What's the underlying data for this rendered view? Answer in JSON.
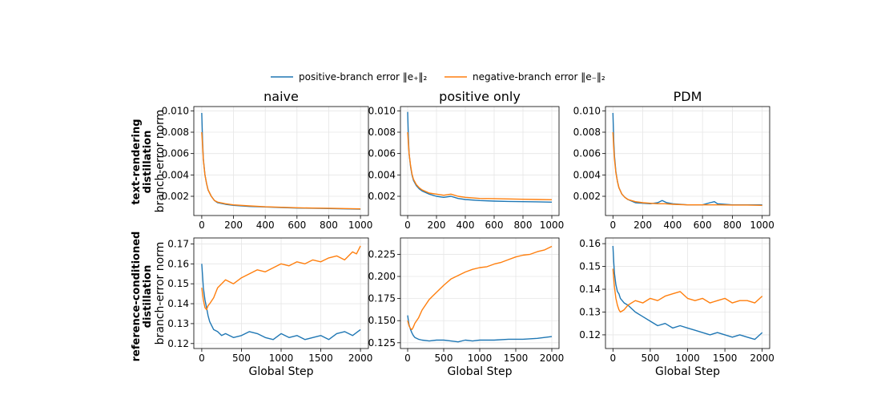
{
  "legend": {
    "items": [
      {
        "label": "positive-branch error  ‖e₊‖₂",
        "color": "#1f77b4"
      },
      {
        "label": "negative-branch error  ‖e₋‖₂",
        "color": "#ff7f0e"
      }
    ],
    "placement": "top-center"
  },
  "row_labels": [
    {
      "line1": "text-rendering",
      "line2": "distillation"
    },
    {
      "line1": "reference-conditioned",
      "line2": "distillation"
    }
  ],
  "chart_data": [
    {
      "type": "line",
      "title": "naive",
      "xlabel": "",
      "ylabel": "branch-error norm",
      "xlim": [
        -50,
        1050
      ],
      "ylim": [
        0.0002,
        0.0104
      ],
      "xticks": [
        0,
        200,
        400,
        600,
        800,
        1000
      ],
      "xtick_labels": [
        "0",
        "200",
        "400",
        "600",
        "800",
        "1000"
      ],
      "yticks": [
        0.002,
        0.004,
        0.006,
        0.008,
        0.01
      ],
      "ytick_labels": [
        "0.002",
        "0.004",
        "0.006",
        "0.008",
        "0.010"
      ],
      "grid": true,
      "series": [
        {
          "color": "#1f77b4",
          "x": [
            0,
            5,
            10,
            20,
            30,
            40,
            60,
            80,
            100,
            150,
            200,
            300,
            400,
            500,
            600,
            700,
            800,
            900,
            1000
          ],
          "y": [
            0.0098,
            0.0072,
            0.0055,
            0.004,
            0.0032,
            0.0026,
            0.002,
            0.0016,
            0.0014,
            0.00125,
            0.00115,
            0.00105,
            0.001,
            0.00095,
            0.0009,
            0.00088,
            0.00085,
            0.00082,
            0.0008
          ]
        },
        {
          "color": "#ff7f0e",
          "x": [
            0,
            5,
            10,
            20,
            30,
            40,
            60,
            80,
            100,
            150,
            200,
            300,
            400,
            500,
            600,
            700,
            800,
            900,
            1000
          ],
          "y": [
            0.008,
            0.0068,
            0.0054,
            0.004,
            0.0032,
            0.0026,
            0.002,
            0.0016,
            0.00145,
            0.0013,
            0.0012,
            0.0011,
            0.00102,
            0.00097,
            0.00093,
            0.0009,
            0.00088,
            0.00085,
            0.00082
          ]
        }
      ]
    },
    {
      "type": "line",
      "title": "positive only",
      "xlabel": "",
      "ylabel": "",
      "xlim": [
        -50,
        1050
      ],
      "ylim": [
        0.0002,
        0.0104
      ],
      "xticks": [
        0,
        200,
        400,
        600,
        800,
        1000
      ],
      "xtick_labels": [
        "0",
        "200",
        "400",
        "600",
        "800",
        "1000"
      ],
      "yticks": [
        0.002,
        0.004,
        0.006,
        0.008,
        0.01
      ],
      "ytick_labels": [
        "0.002",
        "0.004",
        "0.006",
        "0.008",
        "0.010"
      ],
      "grid": true,
      "series": [
        {
          "color": "#1f77b4",
          "x": [
            0,
            5,
            10,
            20,
            30,
            40,
            60,
            80,
            100,
            150,
            200,
            250,
            300,
            350,
            400,
            500,
            600,
            700,
            800,
            900,
            1000
          ],
          "y": [
            0.0099,
            0.0075,
            0.006,
            0.0048,
            0.004,
            0.0035,
            0.003,
            0.0027,
            0.0025,
            0.0022,
            0.002,
            0.0019,
            0.002,
            0.0018,
            0.0017,
            0.0016,
            0.00155,
            0.00152,
            0.0015,
            0.00148,
            0.00145
          ]
        },
        {
          "color": "#ff7f0e",
          "x": [
            0,
            5,
            10,
            20,
            30,
            40,
            60,
            80,
            100,
            150,
            200,
            250,
            300,
            350,
            400,
            500,
            600,
            700,
            800,
            900,
            1000
          ],
          "y": [
            0.008,
            0.007,
            0.006,
            0.0049,
            0.0041,
            0.0036,
            0.0031,
            0.0028,
            0.0026,
            0.0023,
            0.0022,
            0.0021,
            0.0022,
            0.002,
            0.0019,
            0.0018,
            0.00178,
            0.00175,
            0.00172,
            0.0017,
            0.00168
          ]
        }
      ]
    },
    {
      "type": "line",
      "title": "PDM",
      "xlabel": "",
      "ylabel": "",
      "xlim": [
        -50,
        1050
      ],
      "ylim": [
        0.0002,
        0.0104
      ],
      "xticks": [
        0,
        200,
        400,
        600,
        800,
        1000
      ],
      "xtick_labels": [
        "0",
        "200",
        "400",
        "600",
        "800",
        "1000"
      ],
      "yticks": [
        0.002,
        0.004,
        0.006,
        0.008,
        0.01
      ],
      "ytick_labels": [
        "0.002",
        "0.004",
        "0.006",
        "0.008",
        "0.010"
      ],
      "grid": true,
      "series": [
        {
          "color": "#1f77b4",
          "x": [
            0,
            5,
            10,
            20,
            30,
            40,
            60,
            80,
            100,
            150,
            200,
            250,
            300,
            330,
            360,
            400,
            500,
            600,
            650,
            680,
            700,
            800,
            900,
            1000
          ],
          "y": [
            0.0098,
            0.0072,
            0.0058,
            0.0043,
            0.0034,
            0.0028,
            0.0022,
            0.0019,
            0.0017,
            0.0014,
            0.00135,
            0.0013,
            0.0014,
            0.0016,
            0.0014,
            0.0013,
            0.0012,
            0.0012,
            0.0014,
            0.0015,
            0.0013,
            0.0012,
            0.0012,
            0.0012
          ]
        },
        {
          "color": "#ff7f0e",
          "x": [
            0,
            5,
            10,
            20,
            30,
            40,
            60,
            80,
            100,
            150,
            200,
            250,
            300,
            350,
            400,
            500,
            600,
            700,
            800,
            900,
            1000
          ],
          "y": [
            0.008,
            0.0066,
            0.0055,
            0.0042,
            0.0034,
            0.0028,
            0.0022,
            0.0019,
            0.0017,
            0.0015,
            0.0014,
            0.00135,
            0.0013,
            0.0013,
            0.00125,
            0.0012,
            0.0012,
            0.0012,
            0.00118,
            0.00118,
            0.00115
          ]
        }
      ]
    },
    {
      "type": "line",
      "title": "",
      "xlabel": "Global Step",
      "ylabel": "branch-error norm",
      "xlim": [
        -100,
        2100
      ],
      "ylim": [
        0.1175,
        0.173
      ],
      "xticks": [
        0,
        500,
        1000,
        1500,
        2000
      ],
      "xtick_labels": [
        "0",
        "500",
        "1000",
        "1500",
        "2000"
      ],
      "yticks": [
        0.12,
        0.13,
        0.14,
        0.15,
        0.16,
        0.17
      ],
      "ytick_labels": [
        "0.12",
        "0.13",
        "0.14",
        "0.15",
        "0.16",
        "0.17"
      ],
      "grid": true,
      "series": [
        {
          "color": "#1f77b4",
          "x": [
            0,
            10,
            20,
            40,
            60,
            80,
            100,
            150,
            200,
            250,
            300,
            400,
            500,
            600,
            700,
            800,
            900,
            1000,
            1100,
            1200,
            1300,
            1400,
            1500,
            1600,
            1700,
            1800,
            1900,
            2000
          ],
          "y": [
            0.16,
            0.154,
            0.148,
            0.142,
            0.138,
            0.134,
            0.131,
            0.127,
            0.126,
            0.124,
            0.125,
            0.123,
            0.124,
            0.126,
            0.125,
            0.123,
            0.122,
            0.125,
            0.123,
            0.124,
            0.122,
            0.123,
            0.124,
            0.122,
            0.125,
            0.126,
            0.124,
            0.127
          ]
        },
        {
          "color": "#ff7f0e",
          "x": [
            0,
            10,
            20,
            40,
            60,
            80,
            100,
            150,
            200,
            250,
            300,
            400,
            500,
            600,
            700,
            800,
            900,
            1000,
            1100,
            1200,
            1300,
            1400,
            1500,
            1600,
            1700,
            1800,
            1900,
            1950,
            2000
          ],
          "y": [
            0.148,
            0.145,
            0.142,
            0.138,
            0.137,
            0.139,
            0.14,
            0.143,
            0.148,
            0.15,
            0.152,
            0.15,
            0.153,
            0.155,
            0.157,
            0.156,
            0.158,
            0.16,
            0.159,
            0.161,
            0.16,
            0.162,
            0.161,
            0.163,
            0.164,
            0.162,
            0.166,
            0.165,
            0.169
          ]
        }
      ]
    },
    {
      "type": "line",
      "title": "",
      "xlabel": "Global Step",
      "ylabel": "",
      "xlim": [
        -100,
        2100
      ],
      "ylim": [
        0.1185,
        0.2435
      ],
      "xticks": [
        0,
        500,
        1000,
        1500,
        2000
      ],
      "xtick_labels": [
        "0",
        "500",
        "1000",
        "1500",
        "2000"
      ],
      "yticks": [
        0.125,
        0.15,
        0.175,
        0.2,
        0.225
      ],
      "ytick_labels": [
        "0.125",
        "0.150",
        "0.175",
        "0.200",
        "0.225"
      ],
      "grid": true,
      "series": [
        {
          "color": "#1f77b4",
          "x": [
            0,
            10,
            20,
            40,
            60,
            80,
            100,
            150,
            200,
            300,
            400,
            500,
            600,
            700,
            800,
            900,
            1000,
            1200,
            1400,
            1600,
            1800,
            2000
          ],
          "y": [
            0.156,
            0.15,
            0.145,
            0.14,
            0.136,
            0.133,
            0.131,
            0.129,
            0.128,
            0.127,
            0.128,
            0.128,
            0.127,
            0.126,
            0.128,
            0.127,
            0.128,
            0.128,
            0.129,
            0.129,
            0.13,
            0.132
          ]
        },
        {
          "color": "#ff7f0e",
          "x": [
            0,
            10,
            20,
            40,
            60,
            80,
            100,
            150,
            200,
            250,
            300,
            350,
            400,
            500,
            600,
            700,
            800,
            900,
            1000,
            1100,
            1200,
            1300,
            1400,
            1500,
            1600,
            1700,
            1800,
            1900,
            2000
          ],
          "y": [
            0.15,
            0.147,
            0.144,
            0.141,
            0.14,
            0.143,
            0.147,
            0.153,
            0.162,
            0.168,
            0.174,
            0.178,
            0.182,
            0.19,
            0.197,
            0.201,
            0.205,
            0.208,
            0.21,
            0.211,
            0.214,
            0.216,
            0.219,
            0.222,
            0.224,
            0.225,
            0.228,
            0.23,
            0.234
          ]
        }
      ]
    },
    {
      "type": "line",
      "title": "",
      "xlabel": "Global Step",
      "ylabel": "",
      "xlim": [
        -100,
        2100
      ],
      "ylim": [
        0.114,
        0.1625
      ],
      "xticks": [
        0,
        500,
        1000,
        1500,
        2000
      ],
      "xtick_labels": [
        "0",
        "500",
        "1000",
        "1500",
        "2000"
      ],
      "yticks": [
        0.12,
        0.13,
        0.14,
        0.15,
        0.16
      ],
      "ytick_labels": [
        "0.12",
        "0.13",
        "0.14",
        "0.15",
        "0.16"
      ],
      "grid": true,
      "series": [
        {
          "color": "#1f77b4",
          "x": [
            0,
            10,
            20,
            40,
            60,
            80,
            100,
            150,
            200,
            300,
            400,
            500,
            600,
            700,
            800,
            900,
            1000,
            1100,
            1200,
            1300,
            1400,
            1500,
            1600,
            1700,
            1800,
            1900,
            2000
          ],
          "y": [
            0.159,
            0.152,
            0.147,
            0.142,
            0.139,
            0.138,
            0.136,
            0.134,
            0.133,
            0.13,
            0.128,
            0.126,
            0.124,
            0.125,
            0.123,
            0.124,
            0.123,
            0.122,
            0.121,
            0.12,
            0.121,
            0.12,
            0.119,
            0.12,
            0.119,
            0.118,
            0.121
          ]
        },
        {
          "color": "#ff7f0e",
          "x": [
            0,
            10,
            20,
            40,
            60,
            80,
            100,
            150,
            200,
            300,
            400,
            500,
            600,
            700,
            800,
            900,
            1000,
            1100,
            1200,
            1300,
            1400,
            1500,
            1600,
            1700,
            1800,
            1900,
            2000
          ],
          "y": [
            0.149,
            0.145,
            0.141,
            0.136,
            0.133,
            0.131,
            0.13,
            0.131,
            0.133,
            0.135,
            0.134,
            0.136,
            0.135,
            0.137,
            0.138,
            0.139,
            0.136,
            0.135,
            0.136,
            0.134,
            0.135,
            0.136,
            0.134,
            0.135,
            0.135,
            0.134,
            0.137
          ]
        }
      ]
    }
  ]
}
